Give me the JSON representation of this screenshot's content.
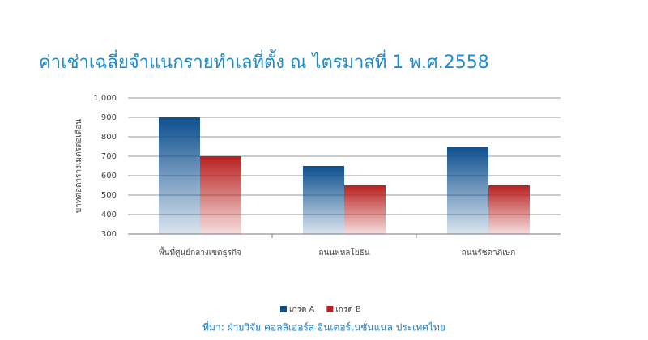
{
  "chart_data": {
    "type": "bar",
    "title": "ค่าเช่าเฉลี่ยจำแนกรายทำเลที่ตั้ง ณ ไตรมาสที่ 1 พ.ศ.2558",
    "y_label": "บาทต่อตารางเมตรต่อเดือน",
    "categories": [
      "พื้นที่ศูนย์กลางเขตธุรกิจ",
      "ถนนพหลโยธิน",
      "ถนนรัชดาภิเษก"
    ],
    "series": [
      {
        "name": "เกรด A",
        "color": "#0d4f8f",
        "values": [
          900,
          650,
          750
        ]
      },
      {
        "name": "เกรด B",
        "color": "#b8211f",
        "values": [
          700,
          550,
          550
        ]
      }
    ],
    "ylim": [
      300,
      1000
    ],
    "yticks": [
      300,
      400,
      500,
      600,
      700,
      800,
      900,
      {
        "value": 1000,
        "label": "1,000"
      }
    ],
    "grid": true,
    "legend": "bottom",
    "source": "ที่มา: ฝ่ายวิจัย คอลลิเออร์ส อินเตอร์เนชั่นแนล ประเทศไทย"
  }
}
